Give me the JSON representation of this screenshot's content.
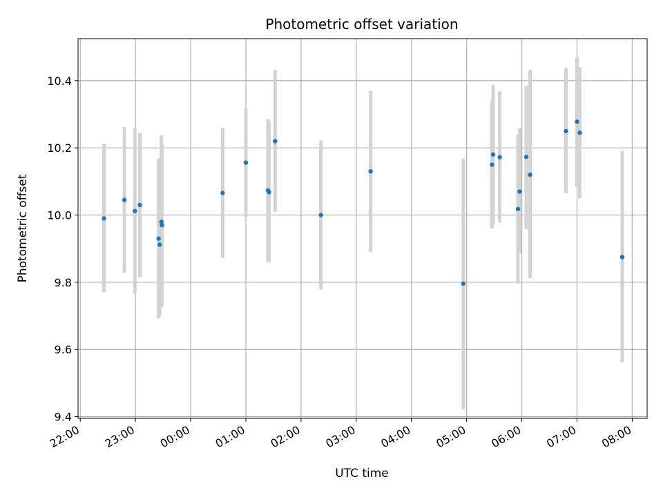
{
  "chart_data": {
    "type": "scatter",
    "title": "Photometric offset variation",
    "xlabel": "UTC time",
    "ylabel": "Photometric offset",
    "x_unit": "hours since 22:00 UTC",
    "xlim": [
      -0.04,
      10.27
    ],
    "ylim": [
      9.395,
      10.525
    ],
    "grid": true,
    "x_ticks": [
      {
        "value": 0,
        "label": "22:00"
      },
      {
        "value": 1,
        "label": "23:00"
      },
      {
        "value": 2,
        "label": "00:00"
      },
      {
        "value": 3,
        "label": "01:00"
      },
      {
        "value": 4,
        "label": "02:00"
      },
      {
        "value": 5,
        "label": "03:00"
      },
      {
        "value": 6,
        "label": "04:00"
      },
      {
        "value": 7,
        "label": "05:00"
      },
      {
        "value": 8,
        "label": "06:00"
      },
      {
        "value": 9,
        "label": "07:00"
      },
      {
        "value": 10,
        "label": "08:00"
      }
    ],
    "y_ticks": [
      {
        "value": 9.4,
        "label": "9.4"
      },
      {
        "value": 9.6,
        "label": "9.6"
      },
      {
        "value": 9.8,
        "label": "9.8"
      },
      {
        "value": 10.0,
        "label": "10.0"
      },
      {
        "value": 10.2,
        "label": "10.2"
      },
      {
        "value": 10.4,
        "label": "10.4"
      }
    ],
    "point_color": "#1f77b4",
    "errorbar_color": "#d3d3d3",
    "points": [
      {
        "x": 0.43,
        "y": 9.99,
        "low": 9.77,
        "high": 10.212
      },
      {
        "x": 0.8,
        "y": 10.045,
        "low": 9.828,
        "high": 10.262
      },
      {
        "x": 0.99,
        "y": 10.012,
        "low": 9.765,
        "high": 10.258
      },
      {
        "x": 1.08,
        "y": 10.03,
        "low": 9.815,
        "high": 10.245
      },
      {
        "x": 1.42,
        "y": 9.93,
        "low": 9.692,
        "high": 10.168
      },
      {
        "x": 1.44,
        "y": 9.912,
        "low": 9.7,
        "high": 10.125
      },
      {
        "x": 1.47,
        "y": 9.98,
        "low": 9.725,
        "high": 10.237
      },
      {
        "x": 1.48,
        "y": 9.97,
        "low": 9.73,
        "high": 10.21
      },
      {
        "x": 2.58,
        "y": 10.066,
        "low": 9.872,
        "high": 10.26
      },
      {
        "x": 3.0,
        "y": 10.156,
        "low": 9.995,
        "high": 10.318
      },
      {
        "x": 3.4,
        "y": 10.073,
        "low": 9.86,
        "high": 10.285
      },
      {
        "x": 3.42,
        "y": 10.068,
        "low": 9.86,
        "high": 10.278
      },
      {
        "x": 3.53,
        "y": 10.22,
        "low": 10.01,
        "high": 10.432
      },
      {
        "x": 4.36,
        "y": 10.0,
        "low": 9.778,
        "high": 10.222
      },
      {
        "x": 5.26,
        "y": 10.13,
        "low": 9.89,
        "high": 10.37
      },
      {
        "x": 6.94,
        "y": 9.796,
        "low": 9.422,
        "high": 10.167
      },
      {
        "x": 7.46,
        "y": 10.15,
        "low": 9.96,
        "high": 10.34
      },
      {
        "x": 7.48,
        "y": 10.18,
        "low": 9.97,
        "high": 10.388
      },
      {
        "x": 7.6,
        "y": 10.172,
        "low": 9.978,
        "high": 10.368
      },
      {
        "x": 7.93,
        "y": 10.018,
        "low": 9.795,
        "high": 10.24
      },
      {
        "x": 7.96,
        "y": 10.07,
        "low": 9.885,
        "high": 10.258
      },
      {
        "x": 8.08,
        "y": 10.173,
        "low": 9.958,
        "high": 10.385
      },
      {
        "x": 8.15,
        "y": 10.12,
        "low": 9.812,
        "high": 10.432
      },
      {
        "x": 8.8,
        "y": 10.25,
        "low": 10.065,
        "high": 10.438
      },
      {
        "x": 9.0,
        "y": 10.278,
        "low": 10.085,
        "high": 10.47
      },
      {
        "x": 9.05,
        "y": 10.245,
        "low": 10.05,
        "high": 10.44
      },
      {
        "x": 9.82,
        "y": 9.875,
        "low": 9.562,
        "high": 10.19
      }
    ]
  }
}
